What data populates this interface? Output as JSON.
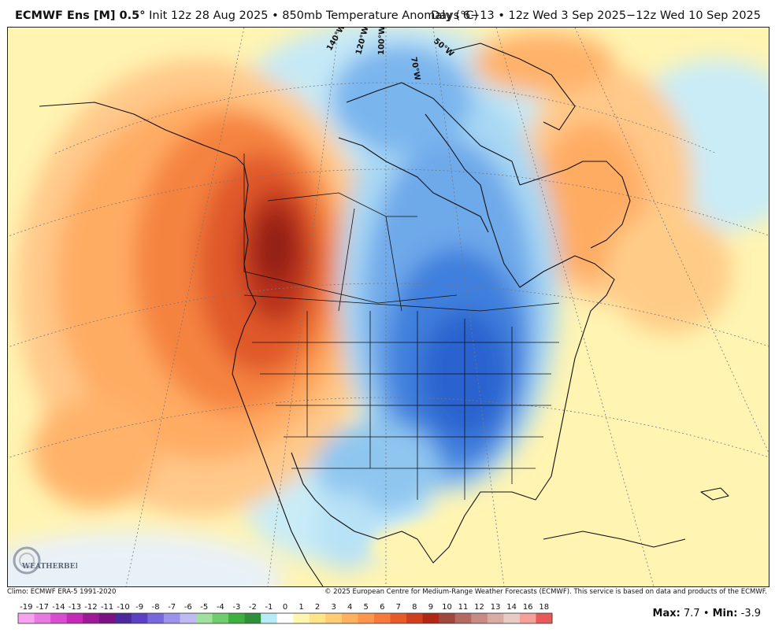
{
  "header": {
    "model": "ECMWF Ens [M] 0.5",
    "init": "Init 12z 28 Aug 2025",
    "field": "850mb Temperature Anomaly (°C)",
    "valid": "Days 6−13 • 12z Wed 3 Sep 2025−12z Wed 10 Sep 2025"
  },
  "map": {
    "region": "North America",
    "longitude_labels": [
      "140°W",
      "120°W",
      "100°W",
      "70°W",
      "50°W"
    ]
  },
  "footer": {
    "climo": "Climo: ECMWF ERA-5 1991-2020",
    "copyright": "© 2025 European Centre for Medium-Range Weather Forecasts (ECMWF). This service is based on data and products of the ECMWF."
  },
  "stats": {
    "max_label": "Max:",
    "max_value": "7.7",
    "min_label": "Min:",
    "min_value": "-3.9"
  },
  "logo": {
    "text": "WEATHERBELL"
  },
  "colorbar": {
    "labels": [
      "-19",
      "-17",
      "-14",
      "-13",
      "-12",
      "-11",
      "-10",
      "-9",
      "-8",
      "-7",
      "-6",
      "-5",
      "-4",
      "-3",
      "-2",
      "-1",
      "0",
      "1",
      "2",
      "3",
      "4",
      "5",
      "6",
      "7",
      "8",
      "9",
      "10",
      "11",
      "12",
      "13",
      "14",
      "16",
      "18"
    ],
    "colors": [
      "#f5a3ee",
      "#e77ae0",
      "#d84cd0",
      "#c22bb5",
      "#9d1a96",
      "#7a1282",
      "#4a2a9a",
      "#5b41c2",
      "#7868dc",
      "#9b92ea",
      "#c0baf2",
      "#9fe09f",
      "#6fcd6f",
      "#3fb03f",
      "#2f8f3a",
      "#b8ecf5",
      "#ffffff",
      "#fff7b0",
      "#ffe48a",
      "#ffcc73",
      "#ffb15e",
      "#ff964c",
      "#f77a3d",
      "#e65b2a",
      "#cf3f1e",
      "#b02815",
      "#a0473e",
      "#b36a62",
      "#c78b84",
      "#d8aba5",
      "#e9cbc6",
      "#f4a09a",
      "#e85a5a"
    ]
  }
}
